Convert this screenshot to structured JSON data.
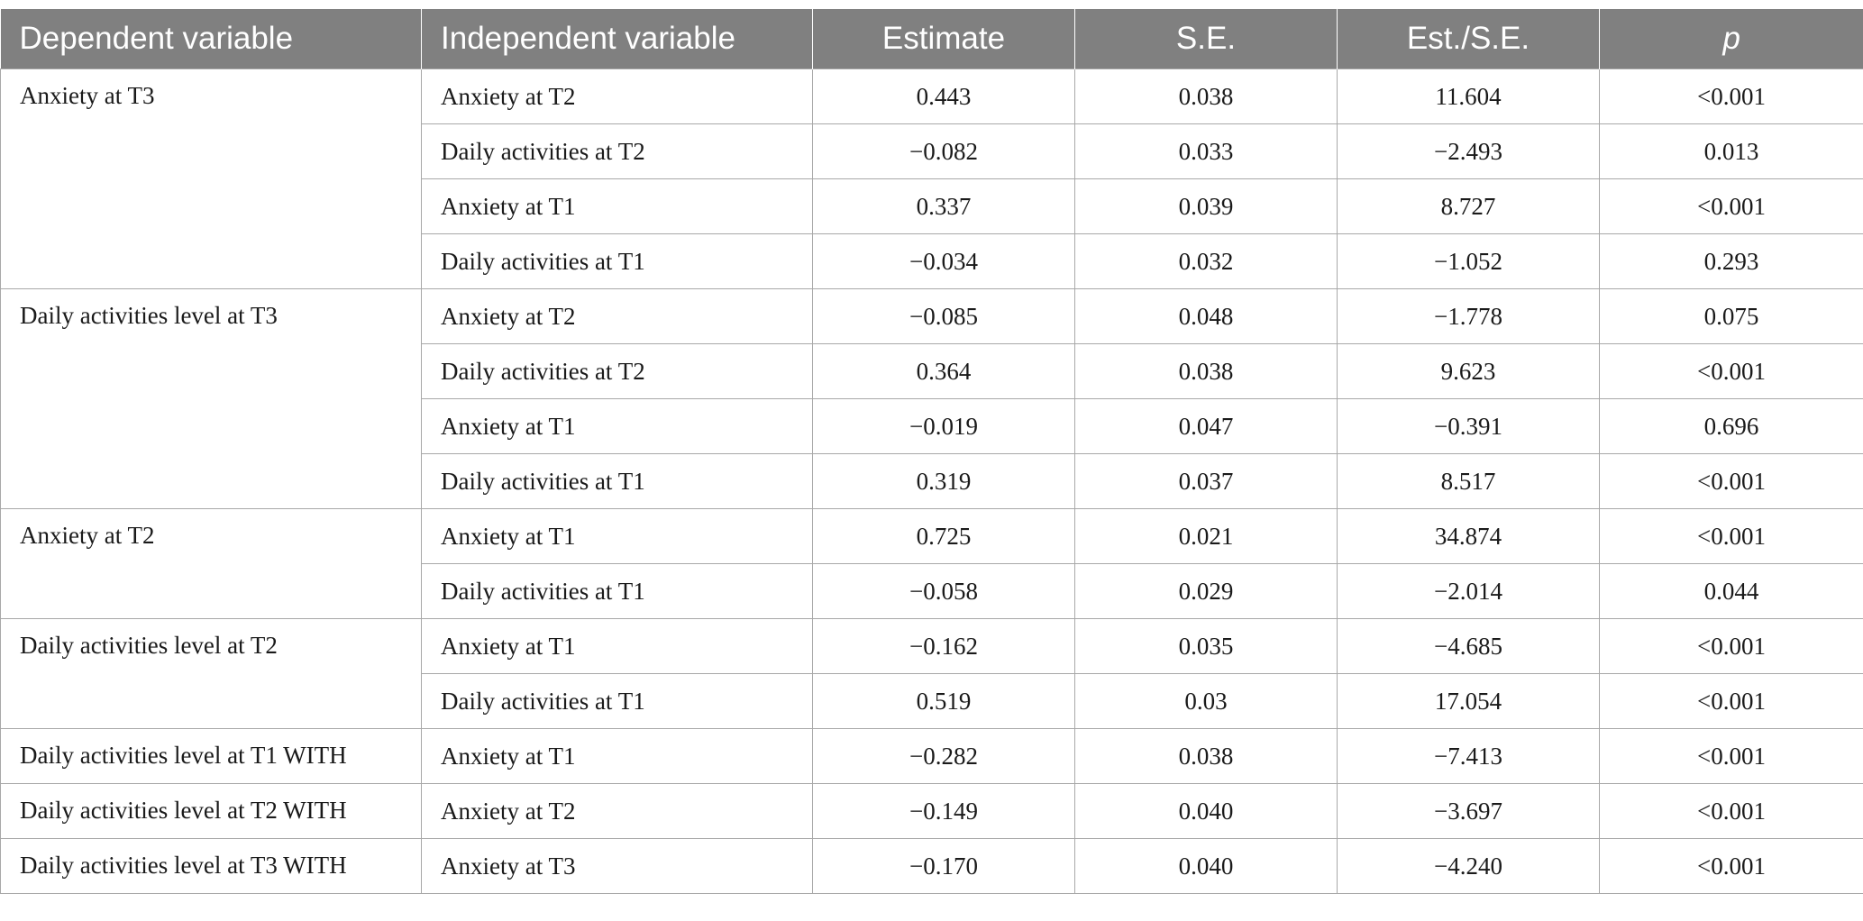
{
  "table": {
    "headers": {
      "dependent": "Dependent variable",
      "independent": "Independent variable",
      "estimate": "Estimate",
      "se": "S.E.",
      "ratio": "Est./S.E.",
      "p": "p"
    },
    "groups": [
      {
        "dependent": "Anxiety at T3",
        "rows": [
          {
            "independent": "Anxiety at T2",
            "estimate": "0.443",
            "se": "0.038",
            "ratio": "11.604",
            "p": "<0.001"
          },
          {
            "independent": "Daily activities at T2",
            "estimate": "−0.082",
            "se": "0.033",
            "ratio": "−2.493",
            "p": "0.013"
          },
          {
            "independent": "Anxiety at T1",
            "estimate": "0.337",
            "se": "0.039",
            "ratio": "8.727",
            "p": "<0.001"
          },
          {
            "independent": "Daily activities at T1",
            "estimate": "−0.034",
            "se": "0.032",
            "ratio": "−1.052",
            "p": "0.293"
          }
        ]
      },
      {
        "dependent": "Daily activities level at T3",
        "rows": [
          {
            "independent": "Anxiety at T2",
            "estimate": "−0.085",
            "se": "0.048",
            "ratio": "−1.778",
            "p": "0.075"
          },
          {
            "independent": "Daily activities at T2",
            "estimate": "0.364",
            "se": "0.038",
            "ratio": "9.623",
            "p": "<0.001"
          },
          {
            "independent": "Anxiety at T1",
            "estimate": "−0.019",
            "se": "0.047",
            "ratio": "−0.391",
            "p": "0.696"
          },
          {
            "independent": "Daily activities at T1",
            "estimate": "0.319",
            "se": "0.037",
            "ratio": "8.517",
            "p": "<0.001"
          }
        ]
      },
      {
        "dependent": "Anxiety at T2",
        "rows": [
          {
            "independent": "Anxiety at T1",
            "estimate": "0.725",
            "se": "0.021",
            "ratio": "34.874",
            "p": "<0.001"
          },
          {
            "independent": "Daily activities at T1",
            "estimate": "−0.058",
            "se": "0.029",
            "ratio": "−2.014",
            "p": "0.044"
          }
        ]
      },
      {
        "dependent": "Daily activities level at T2",
        "rows": [
          {
            "independent": "Anxiety at T1",
            "estimate": "−0.162",
            "se": "0.035",
            "ratio": "−4.685",
            "p": "<0.001"
          },
          {
            "independent": "Daily activities at T1",
            "estimate": "0.519",
            "se": "0.03",
            "ratio": "17.054",
            "p": "<0.001"
          }
        ]
      },
      {
        "dependent": "Daily activities level at T1 WITH",
        "rows": [
          {
            "independent": "Anxiety at T1",
            "estimate": "−0.282",
            "se": "0.038",
            "ratio": "−7.413",
            "p": "<0.001"
          }
        ]
      },
      {
        "dependent": "Daily activities level at T2 WITH",
        "rows": [
          {
            "independent": "Anxiety at T2",
            "estimate": "−0.149",
            "se": "0.040",
            "ratio": "−3.697",
            "p": "<0.001"
          }
        ]
      },
      {
        "dependent": "Daily activities level at T3 WITH",
        "rows": [
          {
            "independent": "Anxiety at T3",
            "estimate": "−0.170",
            "se": "0.040",
            "ratio": "−4.240",
            "p": "<0.001"
          }
        ]
      }
    ]
  }
}
